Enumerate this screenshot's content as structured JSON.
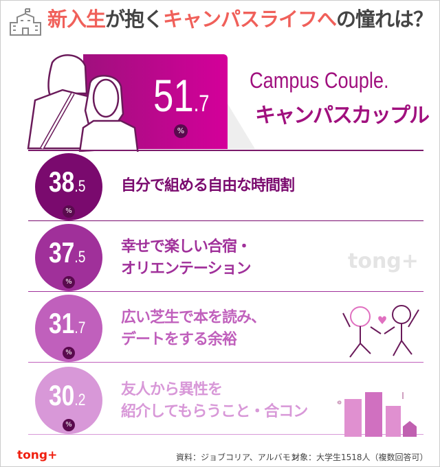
{
  "title": {
    "part1": "新入生",
    "part2": "が抱く",
    "part3": "キャンパスライフへ",
    "part4": "の憧れは？"
  },
  "hero": {
    "value_int": "51",
    "value_dec": ".7",
    "unit": "%",
    "label_en": "Campus Couple.",
    "label_jp": "キャンパスカップル",
    "color": "#c0088e"
  },
  "items": [
    {
      "value_int": "38",
      "value_dec": ".5",
      "unit": "%",
      "line1": "自分で組める自由な時間割",
      "line2": "",
      "color": "#7a0a6e"
    },
    {
      "value_int": "37",
      "value_dec": ".5",
      "unit": "%",
      "line1": "幸せで楽しい合宿・",
      "line2": "オリエンテーション",
      "color": "#a0309a"
    },
    {
      "value_int": "31",
      "value_dec": ".7",
      "unit": "%",
      "line1": "広い芝生で本を読み、",
      "line2": "デートをする余裕",
      "color": "#c060bc"
    },
    {
      "value_int": "30",
      "value_dec": ".2",
      "unit": "%",
      "line1": "友人から異性を",
      "line2": "紹介してもらうこと・合コン",
      "color": "#d898d8"
    }
  ],
  "watermark": "tong+",
  "footer": {
    "logo": "tong+",
    "source": "資料：ジョブコリア、アルバモン",
    "target": "対象：大学生1518人（複数回答可）"
  }
}
